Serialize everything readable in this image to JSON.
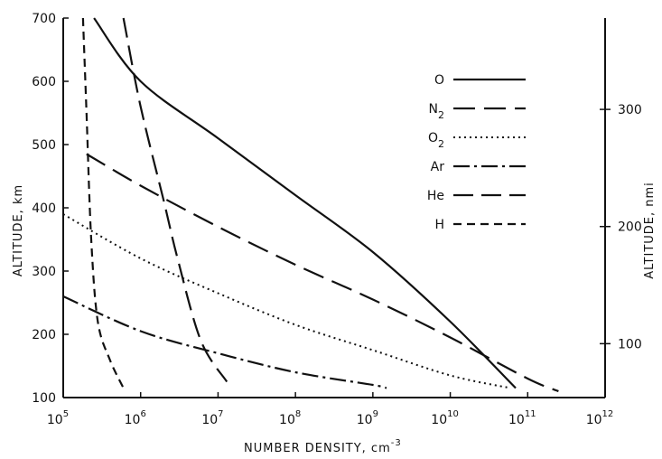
{
  "chart_data": {
    "type": "line",
    "title": "",
    "xlabel": "NUMBER DENSITY, cm",
    "xlabel_exponent": "-3",
    "ylabel": "ALTITUDE, km",
    "y2label": "ALTITUDE, nmi",
    "x_scale": "log",
    "xlim": [
      100000,
      1000000000000
    ],
    "ylim": [
      100,
      700
    ],
    "x_ticks": [
      {
        "base": "10",
        "exp": "5"
      },
      {
        "base": "10",
        "exp": "6"
      },
      {
        "base": "10",
        "exp": "7"
      },
      {
        "base": "10",
        "exp": "8"
      },
      {
        "base": "10",
        "exp": "9"
      },
      {
        "base": "10",
        "exp": "10"
      },
      {
        "base": "10",
        "exp": "11"
      },
      {
        "base": "10",
        "exp": "12"
      }
    ],
    "y_ticks": [
      "100",
      "200",
      "300",
      "400",
      "500",
      "600",
      "700"
    ],
    "y2_ticks": [
      {
        "label": "100",
        "km": 185.2
      },
      {
        "label": "200",
        "km": 370.4
      },
      {
        "label": "300",
        "km": 555.6
      }
    ],
    "grid": false,
    "legend_position": "top-right",
    "series": [
      {
        "name": "O",
        "sub": "",
        "dash": "solid",
        "x": [
          250000,
          1000000,
          10000000,
          100000000,
          1000000000,
          10000000000,
          70000000000
        ],
        "y": [
          700,
          600,
          510,
          420,
          330,
          220,
          115
        ]
      },
      {
        "name": "N",
        "sub": "2",
        "dash": "long-dash",
        "x": [
          200000,
          1000000,
          10000000,
          100000000,
          1000000000,
          10000000000,
          100000000000,
          250000000000
        ],
        "y": [
          485,
          435,
          370,
          310,
          255,
          195,
          130,
          110
        ]
      },
      {
        "name": "O",
        "sub": "2",
        "dash": "dotted",
        "x": [
          100000,
          1000000,
          10000000,
          100000000,
          1000000000,
          10000000000,
          60000000000
        ],
        "y": [
          390,
          320,
          265,
          215,
          175,
          135,
          115
        ]
      },
      {
        "name": "Ar",
        "sub": "",
        "dash": "dash-dot",
        "x": [
          100000,
          1000000,
          10000000,
          100000000,
          1000000000,
          1500000000
        ],
        "y": [
          260,
          205,
          170,
          140,
          120,
          115
        ]
      },
      {
        "name": "He",
        "sub": "",
        "dash": "long-dash-2",
        "x": [
          600000,
          1000000,
          2000000,
          3000000,
          6000000,
          13000000
        ],
        "y": [
          700,
          560,
          410,
          320,
          190,
          125
        ]
      },
      {
        "name": "H",
        "sub": "",
        "dash": "short-dash",
        "x": [
          180000,
          200000,
          230000,
          280000,
          400000,
          600000
        ],
        "y": [
          700,
          550,
          350,
          220,
          160,
          115
        ]
      }
    ]
  }
}
